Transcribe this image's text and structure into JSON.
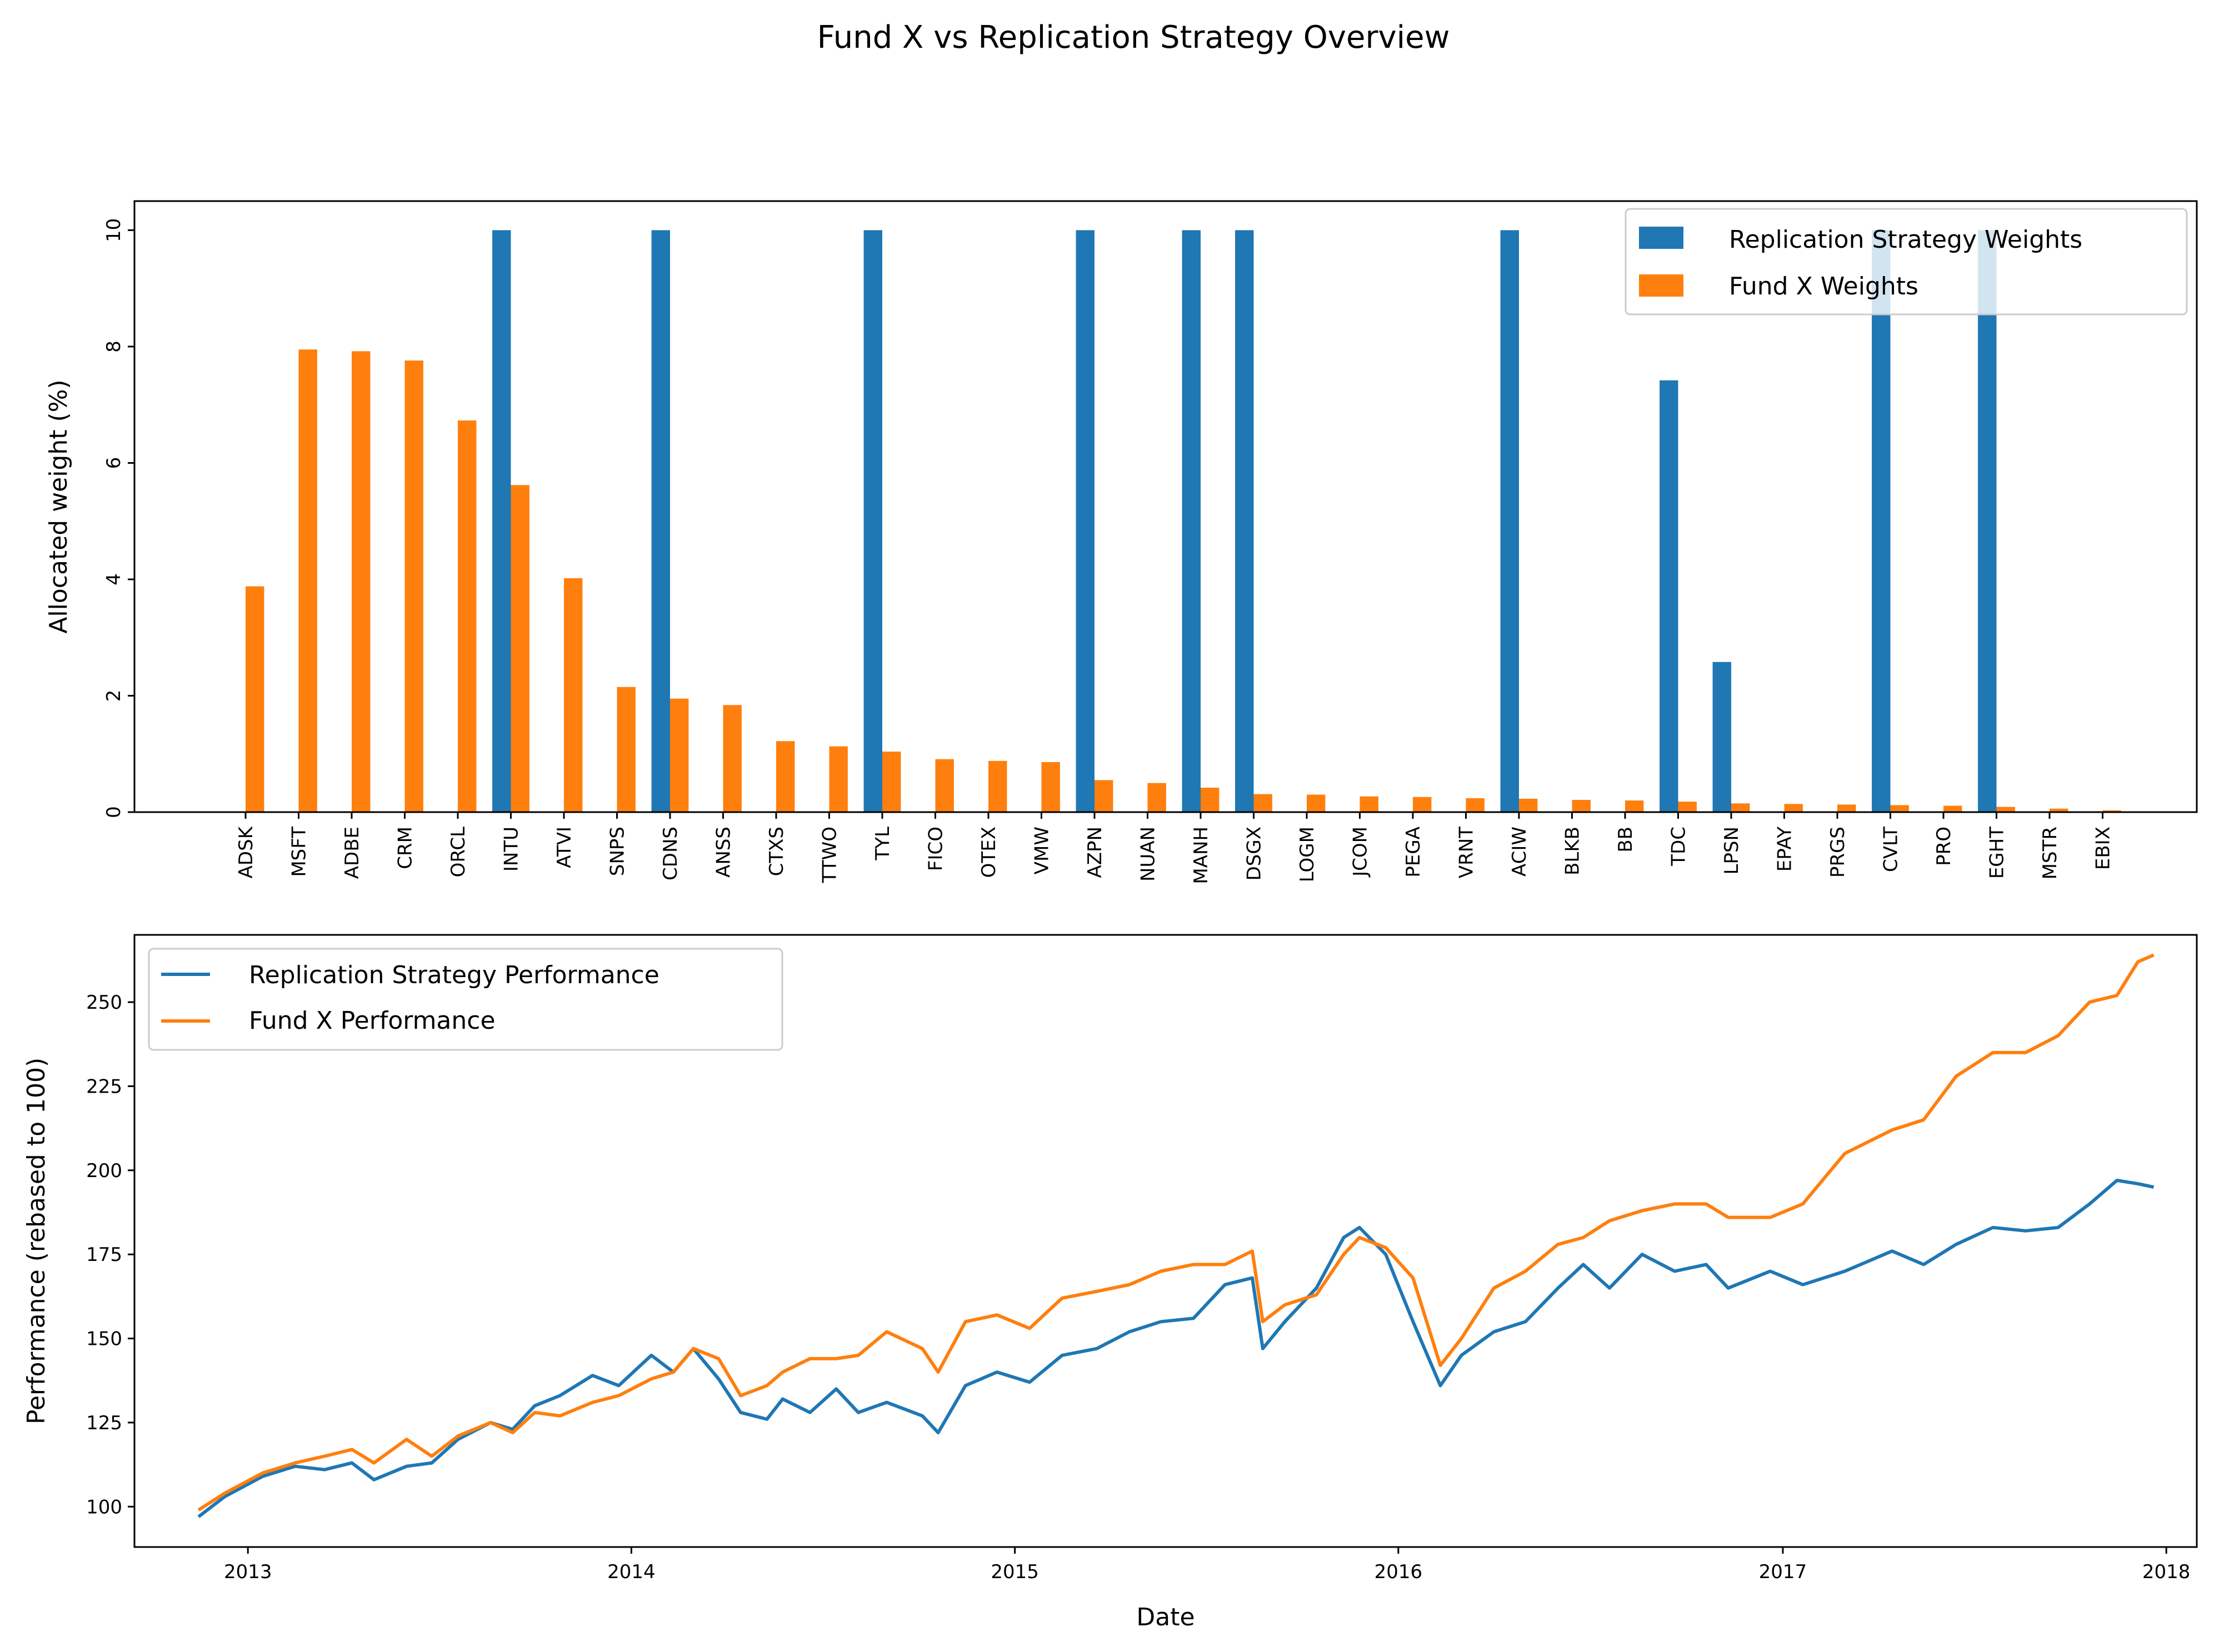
{
  "title": "Fund X vs Replication Strategy Overview",
  "colors": {
    "replication": "#1f77b4",
    "fund": "#ff7f0e"
  },
  "chart_data": [
    {
      "type": "bar",
      "title": "",
      "xlabel": "",
      "ylabel": "Allocated weight (%)",
      "ylim": [
        0,
        10.5
      ],
      "yticks": [
        0,
        2,
        4,
        6,
        8,
        10
      ],
      "legend_position": "top-right",
      "categories": [
        "ADSK",
        "MSFT",
        "ADBE",
        "CRM",
        "ORCL",
        "INTU",
        "ATVI",
        "SNPS",
        "CDNS",
        "ANSS",
        "CTXS",
        "TTWO",
        "TYL",
        "FICO",
        "OTEX",
        "VMW",
        "AZPN",
        "NUAN",
        "MANH",
        "DSGX",
        "LOGM",
        "JCOM",
        "PEGA",
        "VRNT",
        "ACIW",
        "BLKB",
        "BB",
        "TDC",
        "LPSN",
        "EPAY",
        "PRGS",
        "CVLT",
        "PRO",
        "EGHT",
        "MSTR",
        "EBIX"
      ],
      "series": [
        {
          "name": "Replication Strategy Weights",
          "values": [
            0,
            0,
            0,
            0,
            0,
            10,
            0,
            0,
            10,
            0,
            0,
            0,
            10,
            0,
            0,
            0,
            10,
            0,
            10,
            10,
            0,
            0,
            0,
            0,
            10,
            0,
            0,
            7.42,
            2.58,
            0,
            0,
            10,
            0,
            10,
            0,
            0
          ]
        },
        {
          "name": "Fund X Weights",
          "values": [
            3.88,
            7.95,
            7.92,
            7.76,
            6.73,
            5.62,
            4.02,
            2.15,
            1.95,
            1.84,
            1.22,
            1.13,
            1.04,
            0.91,
            0.88,
            0.86,
            0.55,
            0.5,
            0.42,
            0.31,
            0.3,
            0.27,
            0.26,
            0.24,
            0.23,
            0.21,
            0.2,
            0.18,
            0.15,
            0.14,
            0.13,
            0.12,
            0.11,
            0.09,
            0.06,
            0.03
          ]
        }
      ]
    },
    {
      "type": "line",
      "title": "",
      "xlabel": "Date",
      "ylabel": "Performance (rebased to 100)",
      "xlim": [
        "2012-09-15",
        "2018-01-30"
      ],
      "ylim": [
        88,
        270
      ],
      "xticks": [
        "2013",
        "2014",
        "2015",
        "2016",
        "2017",
        "2018"
      ],
      "yticks": [
        100,
        125,
        150,
        175,
        200,
        225,
        250
      ],
      "legend_position": "top-left",
      "series": [
        {
          "name": "Replication Strategy Performance",
          "points": [
            [
              "2012-11-15",
              97
            ],
            [
              "2012-12-10",
              103
            ],
            [
              "2013-01-15",
              109
            ],
            [
              "2013-02-15",
              112
            ],
            [
              "2013-03-15",
              111
            ],
            [
              "2013-04-10",
              113
            ],
            [
              "2013-05-01",
              108
            ],
            [
              "2013-06-01",
              112
            ],
            [
              "2013-06-25",
              113
            ],
            [
              "2013-07-20",
              120
            ],
            [
              "2013-08-20",
              125
            ],
            [
              "2013-09-10",
              123
            ],
            [
              "2013-10-01",
              130
            ],
            [
              "2013-10-25",
              133
            ],
            [
              "2013-11-25",
              139
            ],
            [
              "2013-12-20",
              136
            ],
            [
              "2014-01-20",
              145
            ],
            [
              "2014-02-10",
              140
            ],
            [
              "2014-03-01",
              147
            ],
            [
              "2014-03-25",
              138
            ],
            [
              "2014-04-15",
              128
            ],
            [
              "2014-05-10",
              126
            ],
            [
              "2014-05-25",
              132
            ],
            [
              "2014-06-20",
              128
            ],
            [
              "2014-07-15",
              135
            ],
            [
              "2014-08-05",
              128
            ],
            [
              "2014-09-01",
              131
            ],
            [
              "2014-10-05",
              127
            ],
            [
              "2014-10-20",
              122
            ],
            [
              "2014-11-15",
              136
            ],
            [
              "2014-12-15",
              140
            ],
            [
              "2015-01-15",
              137
            ],
            [
              "2015-02-15",
              145
            ],
            [
              "2015-03-20",
              147
            ],
            [
              "2015-04-20",
              152
            ],
            [
              "2015-05-20",
              155
            ],
            [
              "2015-06-20",
              156
            ],
            [
              "2015-07-20",
              166
            ],
            [
              "2015-08-15",
              168
            ],
            [
              "2015-08-25",
              147
            ],
            [
              "2015-09-15",
              155
            ],
            [
              "2015-10-15",
              165
            ],
            [
              "2015-11-10",
              180
            ],
            [
              "2015-11-25",
              183
            ],
            [
              "2015-12-20",
              175
            ],
            [
              "2016-01-15",
              155
            ],
            [
              "2016-02-10",
              136
            ],
            [
              "2016-03-01",
              145
            ],
            [
              "2016-04-01",
              152
            ],
            [
              "2016-05-01",
              155
            ],
            [
              "2016-06-01",
              165
            ],
            [
              "2016-06-25",
              172
            ],
            [
              "2016-07-20",
              165
            ],
            [
              "2016-08-20",
              175
            ],
            [
              "2016-09-20",
              170
            ],
            [
              "2016-10-20",
              172
            ],
            [
              "2016-11-10",
              165
            ],
            [
              "2016-12-20",
              170
            ],
            [
              "2017-01-20",
              166
            ],
            [
              "2017-03-01",
              170
            ],
            [
              "2017-04-15",
              176
            ],
            [
              "2017-05-15",
              172
            ],
            [
              "2017-06-15",
              178
            ],
            [
              "2017-07-20",
              183
            ],
            [
              "2017-08-20",
              182
            ],
            [
              "2017-09-20",
              183
            ],
            [
              "2017-10-20",
              190
            ],
            [
              "2017-11-15",
              197
            ],
            [
              "2017-12-05",
              196
            ],
            [
              "2017-12-20",
              195
            ]
          ]
        },
        {
          "name": "Fund X Performance",
          "points": [
            [
              "2012-11-15",
              99
            ],
            [
              "2012-12-10",
              104
            ],
            [
              "2013-01-15",
              110
            ],
            [
              "2013-02-15",
              113
            ],
            [
              "2013-03-15",
              115
            ],
            [
              "2013-04-10",
              117
            ],
            [
              "2013-05-01",
              113
            ],
            [
              "2013-06-01",
              120
            ],
            [
              "2013-06-25",
              115
            ],
            [
              "2013-07-20",
              121
            ],
            [
              "2013-08-20",
              125
            ],
            [
              "2013-09-10",
              122
            ],
            [
              "2013-10-01",
              128
            ],
            [
              "2013-10-25",
              127
            ],
            [
              "2013-11-25",
              131
            ],
            [
              "2013-12-20",
              133
            ],
            [
              "2014-01-20",
              138
            ],
            [
              "2014-02-10",
              140
            ],
            [
              "2014-03-01",
              147
            ],
            [
              "2014-03-25",
              144
            ],
            [
              "2014-04-15",
              133
            ],
            [
              "2014-05-10",
              136
            ],
            [
              "2014-05-25",
              140
            ],
            [
              "2014-06-20",
              144
            ],
            [
              "2014-07-15",
              144
            ],
            [
              "2014-08-05",
              145
            ],
            [
              "2014-09-01",
              152
            ],
            [
              "2014-10-05",
              147
            ],
            [
              "2014-10-20",
              140
            ],
            [
              "2014-11-15",
              155
            ],
            [
              "2014-12-15",
              157
            ],
            [
              "2015-01-15",
              153
            ],
            [
              "2015-02-15",
              162
            ],
            [
              "2015-03-20",
              164
            ],
            [
              "2015-04-20",
              166
            ],
            [
              "2015-05-20",
              170
            ],
            [
              "2015-06-20",
              172
            ],
            [
              "2015-07-20",
              172
            ],
            [
              "2015-08-15",
              176
            ],
            [
              "2015-08-25",
              155
            ],
            [
              "2015-09-15",
              160
            ],
            [
              "2015-10-15",
              163
            ],
            [
              "2015-11-10",
              175
            ],
            [
              "2015-11-25",
              180
            ],
            [
              "2015-12-20",
              177
            ],
            [
              "2016-01-15",
              168
            ],
            [
              "2016-02-10",
              142
            ],
            [
              "2016-03-01",
              150
            ],
            [
              "2016-04-01",
              165
            ],
            [
              "2016-05-01",
              170
            ],
            [
              "2016-06-01",
              178
            ],
            [
              "2016-06-25",
              180
            ],
            [
              "2016-07-20",
              185
            ],
            [
              "2016-08-20",
              188
            ],
            [
              "2016-09-20",
              190
            ],
            [
              "2016-10-20",
              190
            ],
            [
              "2016-11-10",
              186
            ],
            [
              "2016-12-20",
              186
            ],
            [
              "2017-01-20",
              190
            ],
            [
              "2017-03-01",
              205
            ],
            [
              "2017-04-15",
              212
            ],
            [
              "2017-05-15",
              215
            ],
            [
              "2017-06-15",
              228
            ],
            [
              "2017-07-20",
              235
            ],
            [
              "2017-08-20",
              235
            ],
            [
              "2017-09-20",
              240
            ],
            [
              "2017-10-20",
              250
            ],
            [
              "2017-11-15",
              252
            ],
            [
              "2017-12-05",
              262
            ],
            [
              "2017-12-20",
              264
            ]
          ]
        }
      ]
    }
  ]
}
